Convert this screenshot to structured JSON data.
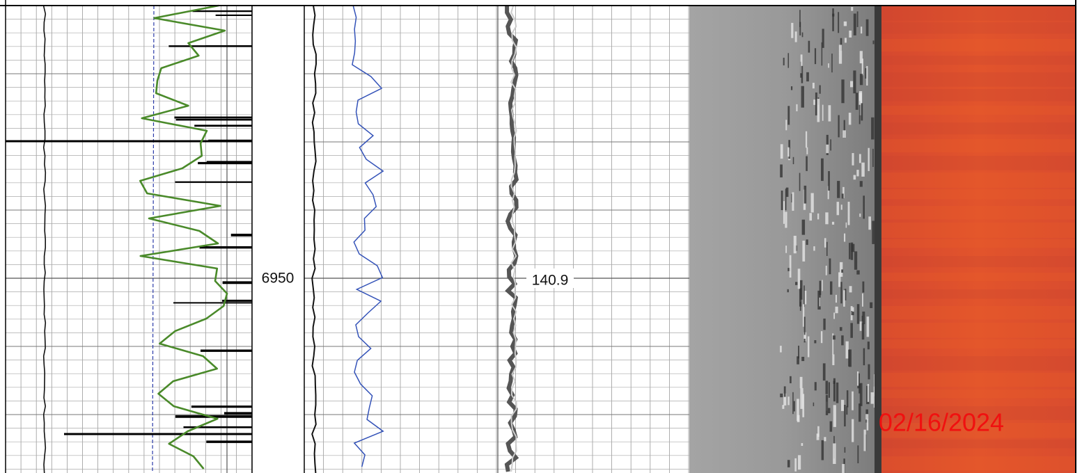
{
  "depth_label": "6950",
  "curve_label": "140.9",
  "date_stamp": "02/16/2024"
}
